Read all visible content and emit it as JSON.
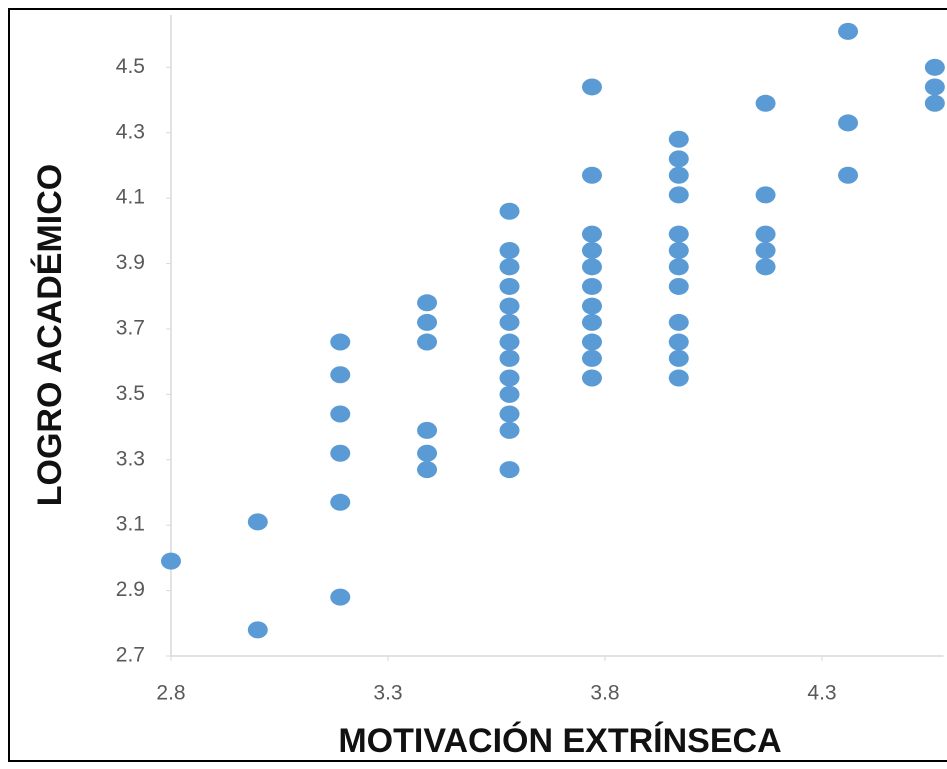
{
  "chart_data": {
    "type": "scatter",
    "x_label": "MOTIVACIÓN  EXTRÍNSECA",
    "y_label": "LOGRO ACADÉMICO",
    "color": "#5b9bd5",
    "xlim": [
      2.8,
      4.58
    ],
    "xticks": [
      2.8,
      3.3,
      3.8,
      4.3
    ],
    "ylim": [
      2.7,
      4.66
    ],
    "yticks": [
      2.7,
      2.9,
      3.1,
      3.3,
      3.5,
      3.7,
      3.9,
      4.1,
      4.3,
      4.5
    ],
    "x": [
      2.8,
      3.0,
      3.0,
      3.19,
      3.19,
      3.19,
      3.19,
      3.19,
      3.19,
      3.39,
      3.39,
      3.39,
      3.39,
      3.39,
      3.39,
      3.58,
      3.58,
      3.58,
      3.58,
      3.58,
      3.58,
      3.58,
      3.58,
      3.58,
      3.58,
      3.58,
      3.58,
      3.58,
      3.77,
      3.77,
      3.77,
      3.77,
      3.77,
      3.77,
      3.77,
      3.77,
      3.77,
      3.77,
      3.77,
      3.97,
      3.97,
      3.97,
      3.97,
      3.97,
      3.97,
      3.97,
      3.97,
      3.97,
      3.97,
      3.97,
      3.97,
      4.17,
      4.17,
      4.17,
      4.17,
      4.17,
      4.36,
      4.36,
      4.36,
      4.56,
      4.56,
      4.56
    ],
    "values": [
      2.99,
      3.11,
      2.78,
      3.66,
      3.56,
      3.44,
      3.32,
      3.17,
      2.88,
      3.78,
      3.72,
      3.66,
      3.39,
      3.32,
      3.27,
      4.06,
      3.94,
      3.89,
      3.83,
      3.77,
      3.72,
      3.66,
      3.61,
      3.55,
      3.5,
      3.44,
      3.39,
      3.27,
      4.44,
      4.17,
      3.99,
      3.94,
      3.89,
      3.83,
      3.77,
      3.72,
      3.66,
      3.61,
      3.55,
      4.28,
      4.22,
      4.17,
      4.11,
      3.99,
      3.94,
      3.89,
      3.83,
      3.72,
      3.66,
      3.61,
      3.55,
      4.39,
      4.11,
      3.99,
      3.94,
      3.89,
      4.61,
      4.33,
      4.17,
      4.5,
      4.44,
      4.39
    ]
  }
}
